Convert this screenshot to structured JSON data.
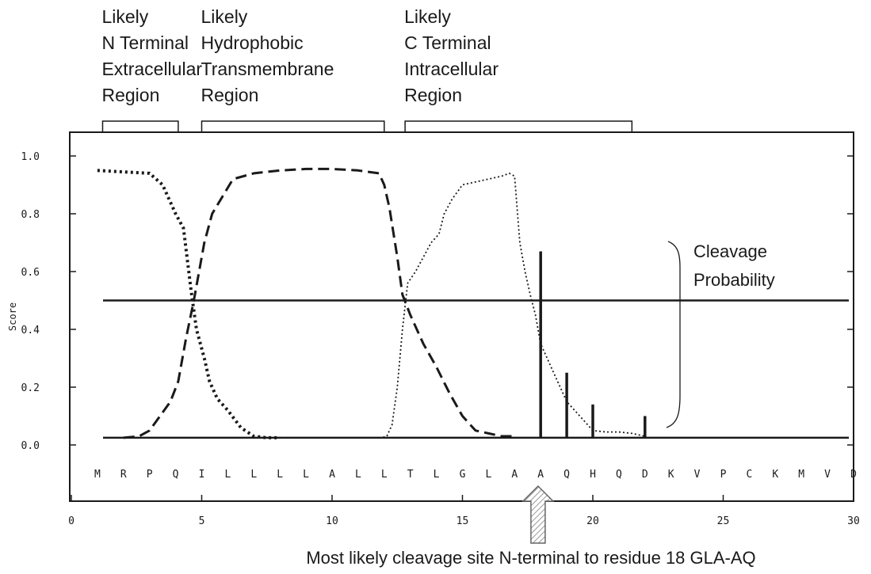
{
  "chart_data": {
    "type": "line",
    "ylabel": "Score",
    "xlim": [
      0,
      30
    ],
    "ylim": [
      0,
      1.0
    ],
    "x_ticks": [
      "0",
      "5",
      "10",
      "15",
      "20",
      "25",
      "30"
    ],
    "y_ticks": [
      "0.0",
      "0.2",
      "0.4",
      "0.6",
      "0.8",
      "1.0"
    ],
    "residues": [
      "M",
      "R",
      "P",
      "Q",
      "I",
      "L",
      "L",
      "L",
      "L",
      "A",
      "L",
      "L",
      "T",
      "L",
      "G",
      "L",
      "A",
      "A",
      "Q",
      "H",
      "Q",
      "D",
      "K",
      "V",
      "P",
      "C",
      "K",
      "M",
      "V",
      "D"
    ],
    "regions": [
      {
        "lines": [
          "Likely",
          "N Terminal",
          "Extracellular",
          "Region"
        ],
        "start": 1.2,
        "end": 4.1
      },
      {
        "lines": [
          "Likely",
          "Hydrophobic",
          "Transmembrane",
          "Region"
        ],
        "start": 5.0,
        "end": 12.0
      },
      {
        "lines": [
          "Likely",
          "C Terminal",
          "Intracellular",
          "Region"
        ],
        "start": 12.8,
        "end": 21.5
      }
    ],
    "threshold": 0.5,
    "baseline": 0.025,
    "series": [
      {
        "style": "dotted-bold",
        "x": [
          1,
          2,
          3,
          3.5,
          4,
          4.3,
          4.6,
          4.8,
          5.1,
          5.3,
          5.6,
          6,
          6.5,
          7,
          7.5,
          8
        ],
        "y": [
          0.95,
          0.945,
          0.94,
          0.9,
          0.8,
          0.75,
          0.53,
          0.4,
          0.3,
          0.22,
          0.16,
          0.12,
          0.06,
          0.03,
          0.025,
          0.025
        ]
      },
      {
        "style": "dashed",
        "x": [
          2,
          2.6,
          3,
          3.4,
          3.8,
          4.1,
          4.4,
          4.7,
          5.1,
          5.4,
          5.8,
          6.2,
          7,
          8,
          9,
          10,
          11,
          11.8,
          12,
          12.2,
          12.5,
          12.7,
          13,
          13.5,
          14,
          14.5,
          15,
          15.5,
          16,
          16.5,
          17
        ],
        "y": [
          0.025,
          0.03,
          0.05,
          0.1,
          0.15,
          0.22,
          0.37,
          0.5,
          0.7,
          0.8,
          0.86,
          0.92,
          0.94,
          0.95,
          0.955,
          0.955,
          0.95,
          0.94,
          0.9,
          0.82,
          0.65,
          0.52,
          0.45,
          0.35,
          0.27,
          0.18,
          0.1,
          0.05,
          0.04,
          0.03,
          0.03
        ]
      },
      {
        "style": "dotted-thin",
        "x": [
          11.2,
          11.9,
          12.1,
          12.3,
          12.5,
          12.7,
          12.9,
          13.2,
          13.5,
          13.8,
          14.1,
          14.3,
          14.6,
          15,
          15.5,
          16,
          16.5,
          16.8,
          17,
          17.2,
          17.4,
          17.6,
          17.8,
          18,
          18.5,
          19,
          19.5,
          20,
          20.5,
          21,
          21.5,
          22
        ],
        "y": [
          0.025,
          0.025,
          0.03,
          0.07,
          0.2,
          0.4,
          0.56,
          0.6,
          0.65,
          0.7,
          0.73,
          0.8,
          0.85,
          0.9,
          0.91,
          0.92,
          0.93,
          0.94,
          0.93,
          0.7,
          0.6,
          0.52,
          0.45,
          0.35,
          0.25,
          0.15,
          0.1,
          0.05,
          0.045,
          0.045,
          0.04,
          0.03
        ]
      }
    ],
    "cleavage_bars": [
      {
        "x": 18,
        "y": 0.67
      },
      {
        "x": 19,
        "y": 0.25
      },
      {
        "x": 20,
        "y": 0.14
      },
      {
        "x": 22,
        "y": 0.1
      }
    ],
    "cleavage_label": [
      "Cleavage",
      "Probability"
    ],
    "annotation_residue": 17.9,
    "bottom_note": "Most likely cleavage site N-terminal to residue 18 GLA-AQ"
  }
}
